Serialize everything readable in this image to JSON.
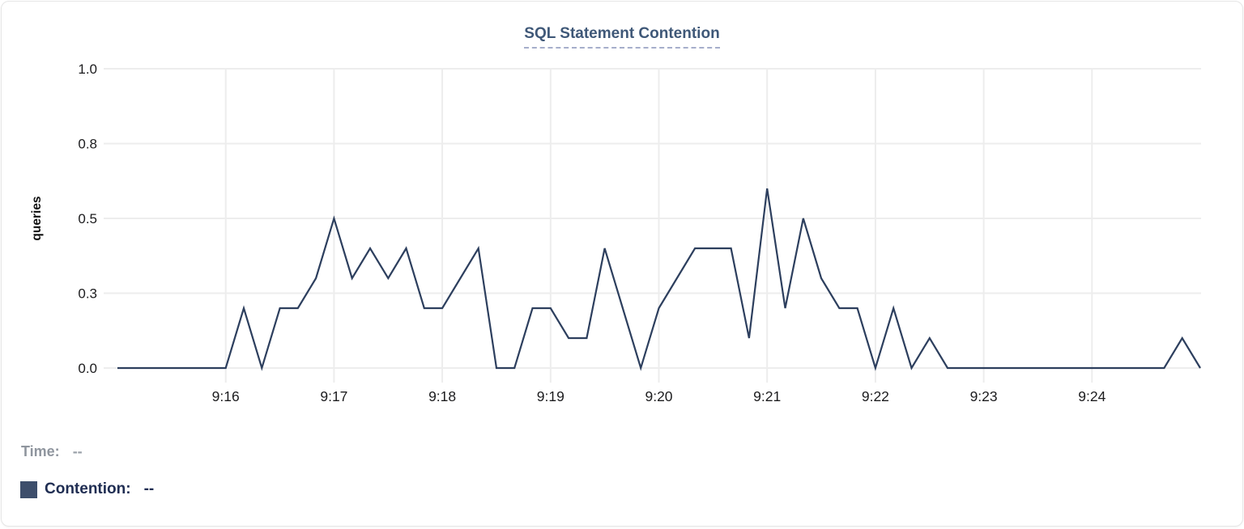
{
  "card": {
    "title": "SQL Statement Contention"
  },
  "chart_data": {
    "type": "line",
    "title": "SQL Statement Contention",
    "xlabel": "",
    "ylabel": "queries",
    "ylim": [
      0,
      1.0
    ],
    "ytick_values": [
      0,
      0.25,
      0.5,
      0.75,
      1.0
    ],
    "ytick_labels": [
      "0.0",
      "0.3",
      "0.5",
      "0.8",
      "1.0"
    ],
    "xtick_labels": [
      "9:16",
      "9:17",
      "9:18",
      "9:19",
      "9:20",
      "9:21",
      "9:22",
      "9:23",
      "9:24"
    ],
    "x_start_time": "9:15:00",
    "x_end_time": "9:25:00",
    "sample_interval_seconds": 10,
    "grid": true,
    "legend_position": "none",
    "series": [
      {
        "name": "Contention",
        "color": "#2d3f5e",
        "values": [
          0,
          0,
          0,
          0,
          0,
          0,
          0,
          0.2,
          0,
          0.2,
          0.2,
          0.3,
          0.5,
          0.3,
          0.4,
          0.3,
          0.4,
          0.2,
          0.2,
          0.3,
          0.4,
          0,
          0,
          0.2,
          0.2,
          0.1,
          0.1,
          0.4,
          0.2,
          0,
          0.2,
          0.3,
          0.4,
          0.4,
          0.4,
          0.1,
          0.6,
          0.2,
          0.5,
          0.3,
          0.2,
          0.2,
          0,
          0.2,
          0,
          0.1,
          0,
          0,
          0,
          0,
          0,
          0,
          0,
          0,
          0,
          0,
          0,
          0,
          0,
          0.1,
          0
        ]
      }
    ]
  },
  "tooltip_readout": {
    "time_label": "Time:",
    "time_value": "--",
    "series_label": "Contention:",
    "series_value": "--",
    "swatch_color": "#3d4e6b"
  },
  "colors": {
    "line": "#2d3f5e",
    "grid": "#ededed",
    "title": "#3f5878",
    "title_underline": "#a6aecb",
    "time_text": "#8f959e",
    "contention_text": "#1f2d52"
  }
}
